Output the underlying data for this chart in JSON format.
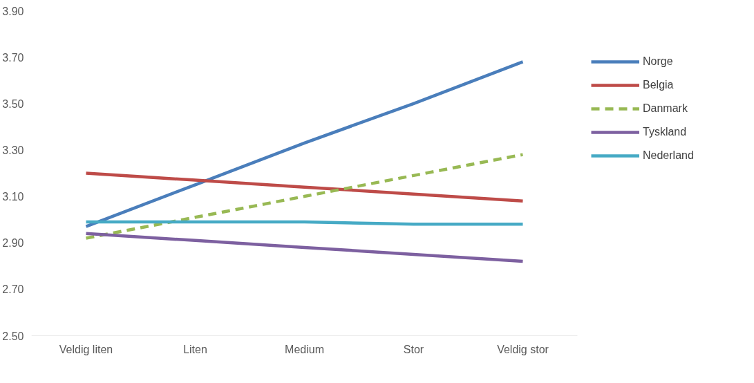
{
  "chart_data": {
    "type": "line",
    "categories": [
      "Veldig liten",
      "Liten",
      "Medium",
      "Stor",
      "Veldig stor"
    ],
    "series": [
      {
        "name": "Norge",
        "color": "#4a7ebb",
        "values": [
          2.97,
          3.15,
          3.33,
          3.5,
          3.68
        ]
      },
      {
        "name": "Belgia",
        "color": "#be4b48",
        "values": [
          3.2,
          3.17,
          3.14,
          3.11,
          3.08
        ]
      },
      {
        "name": "Danmark",
        "color": "#98b954",
        "line_style": "dashed",
        "values": [
          2.92,
          3.01,
          3.1,
          3.19,
          3.28
        ]
      },
      {
        "name": "Tyskland",
        "color": "#7d60a0",
        "values": [
          2.94,
          2.91,
          2.88,
          2.85,
          2.82
        ]
      },
      {
        "name": "Nederland",
        "color": "#46aac5",
        "values": [
          2.99,
          2.99,
          2.99,
          2.98,
          2.98
        ]
      }
    ],
    "ylim": [
      2.5,
      3.9
    ],
    "yticks": [
      {
        "value": 2.5,
        "label": "2.50"
      },
      {
        "value": 2.7,
        "label": "2.70"
      },
      {
        "value": 2.9,
        "label": "2.90"
      },
      {
        "value": 3.1,
        "label": "3.10"
      },
      {
        "value": 3.3,
        "label": "3.30"
      },
      {
        "value": 3.5,
        "label": "3.50"
      },
      {
        "value": 3.7,
        "label": "3.70"
      },
      {
        "value": 3.9,
        "label": "3.90"
      }
    ],
    "grid": false,
    "legend": "right",
    "marker": "none",
    "line_style": "solid"
  }
}
